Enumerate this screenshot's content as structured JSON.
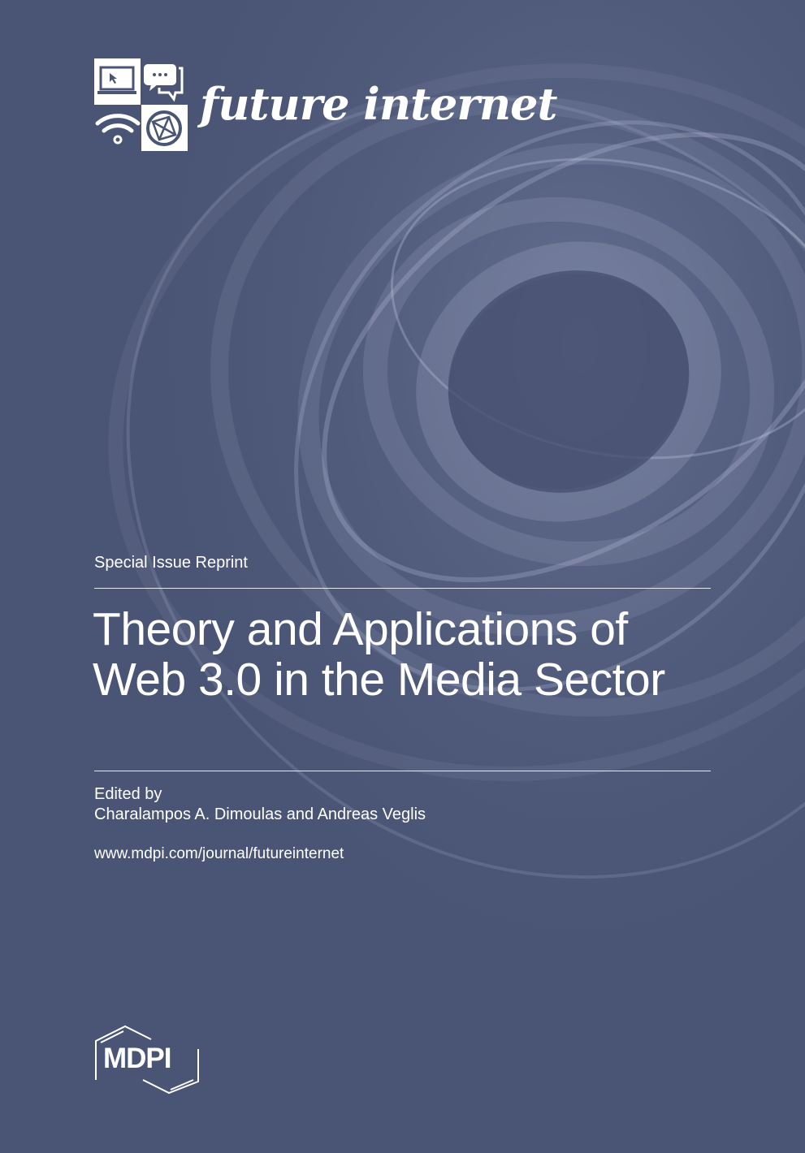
{
  "journal": {
    "name": "future internet",
    "logo_icons": [
      "laptop-cursor-icon",
      "chat-bubbles-icon",
      "wifi-icon",
      "globe-network-icon"
    ]
  },
  "cover": {
    "series_label": "Special Issue Reprint",
    "title_lines": [
      "Theory and Applications of",
      "Web 3.0 in the Media Sector"
    ],
    "edited_by_label": "Edited by",
    "editors": "Charalampos A. Dimoulas and Andreas Veglis",
    "url": "www.mdpi.com/journal/futureinternet"
  },
  "publisher": {
    "logo_text": "MDPI"
  },
  "colors": {
    "background": "#4a5474",
    "text": "#ffffff"
  }
}
